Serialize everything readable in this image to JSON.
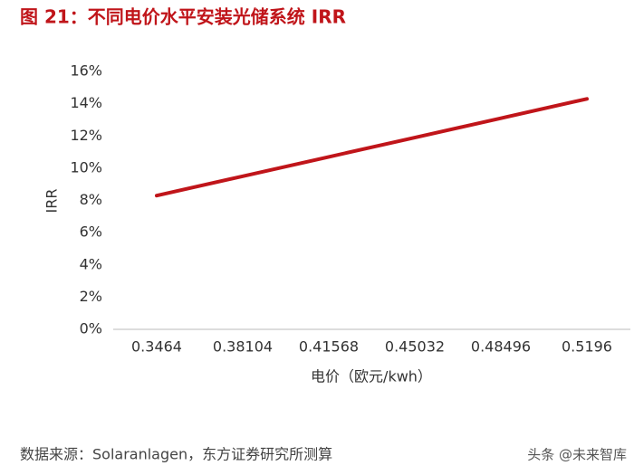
{
  "chart_data": {
    "type": "line",
    "title": "图 21：不同电价水平安装光储系统 IRR",
    "x_label": "电价（欧元/kwh）",
    "y_label": "IRR",
    "categories": [
      "0.3464",
      "0.38104",
      "0.41568",
      "0.45032",
      "0.48496",
      "0.5196"
    ],
    "series": [
      {
        "name": "IRR",
        "color": "#c0151a",
        "values": [
          8.3,
          9.5,
          10.7,
          11.9,
          13.1,
          14.3
        ]
      }
    ],
    "ylim": [
      0,
      16
    ],
    "yticks": [
      {
        "value": 0,
        "label": "0%"
      },
      {
        "value": 2,
        "label": "2%"
      },
      {
        "value": 4,
        "label": "4%"
      },
      {
        "value": 6,
        "label": "6%"
      },
      {
        "value": 8,
        "label": "8%"
      },
      {
        "value": 10,
        "label": "10%"
      },
      {
        "value": 12,
        "label": "12%"
      },
      {
        "value": 14,
        "label": "14%"
      },
      {
        "value": 16,
        "label": "16%"
      }
    ],
    "grid": false,
    "source": "数据来源：Solaranlagen，东方证券研究所测算",
    "watermark": "头条 @未来智库"
  }
}
